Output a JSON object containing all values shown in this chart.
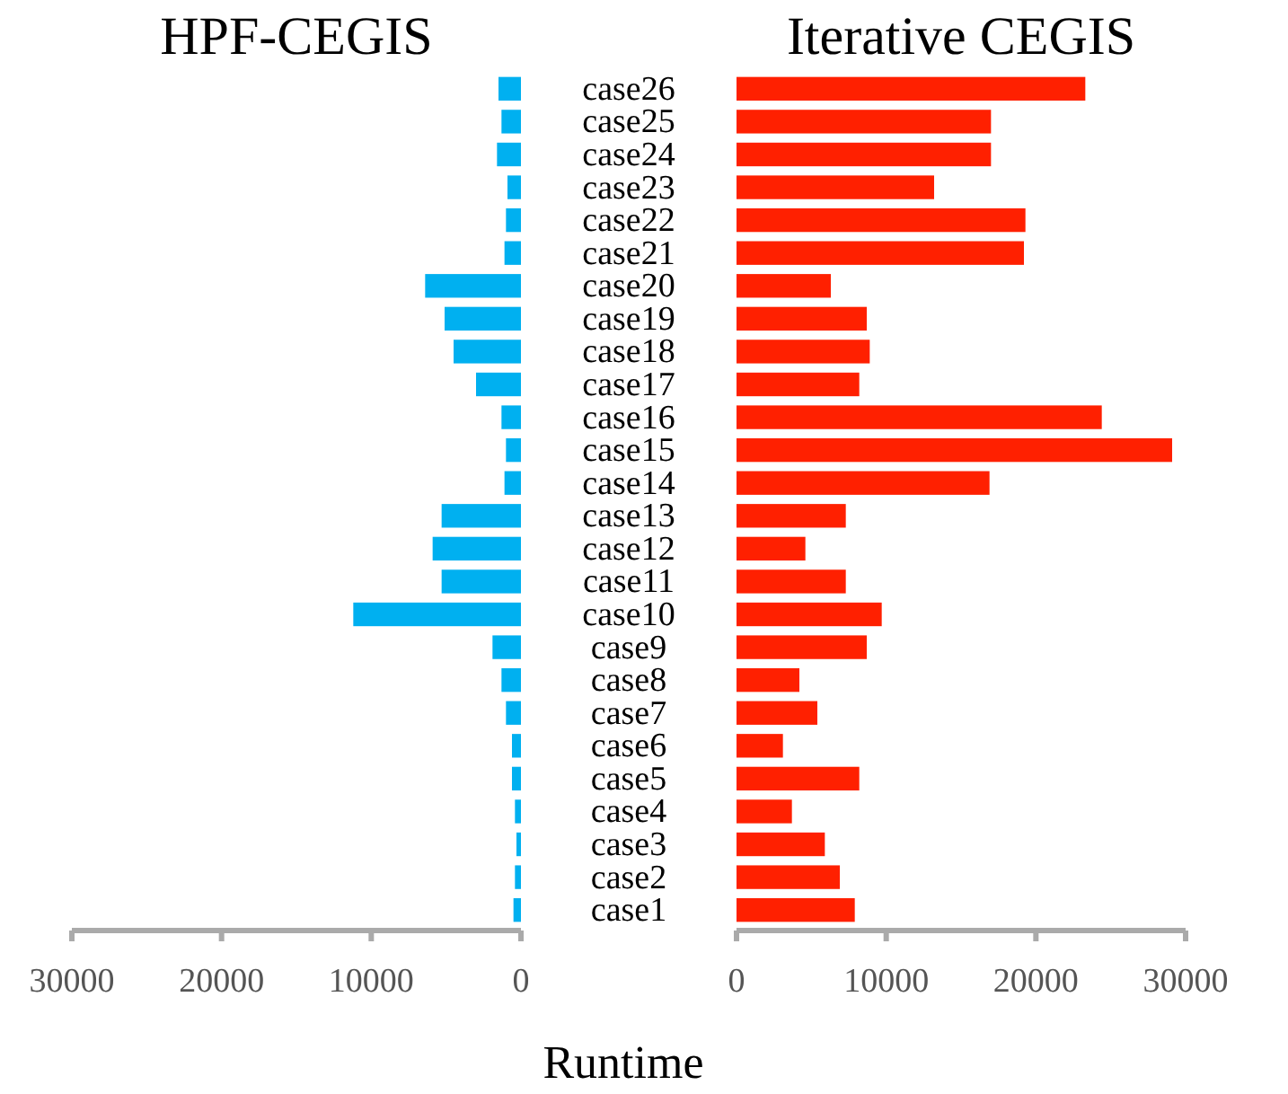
{
  "chart_data": [
    {
      "type": "bar",
      "orientation": "horizontal",
      "title": "HPF-CEGIS",
      "categories": [
        "case26",
        "case25",
        "case24",
        "case23",
        "case22",
        "case21",
        "case20",
        "case19",
        "case18",
        "case17",
        "case16",
        "case15",
        "case14",
        "case13",
        "case12",
        "case11",
        "case10",
        "case9",
        "case8",
        "case7",
        "case6",
        "case5",
        "case4",
        "case3",
        "case2",
        "case1"
      ],
      "values": [
        1500,
        1300,
        1600,
        900,
        1000,
        1100,
        6400,
        5100,
        4500,
        3000,
        1300,
        1000,
        1100,
        5300,
        5900,
        5300,
        11200,
        1900,
        1300,
        1000,
        600,
        600,
        400,
        300,
        400,
        500
      ],
      "color": "#00b0f0",
      "xlim": [
        30000,
        0
      ],
      "xticks": [
        30000,
        20000,
        10000,
        0
      ]
    },
    {
      "type": "bar",
      "orientation": "horizontal",
      "title": "Iterative CEGIS",
      "xlabel": "Runtime",
      "tick_labels": "x",
      "values": [
        23300,
        17000,
        17000,
        13200,
        19300,
        19200,
        6300,
        8700,
        8900,
        8200,
        24400,
        29100,
        16900,
        7300,
        4600,
        7300,
        9700,
        8700,
        4200,
        5400,
        3100,
        8200,
        3700,
        5900,
        6900,
        7900
      ],
      "color": "#ff2000",
      "xlim": [
        0,
        30000
      ],
      "xticks": [
        0,
        10000,
        20000,
        30000
      ]
    }
  ]
}
